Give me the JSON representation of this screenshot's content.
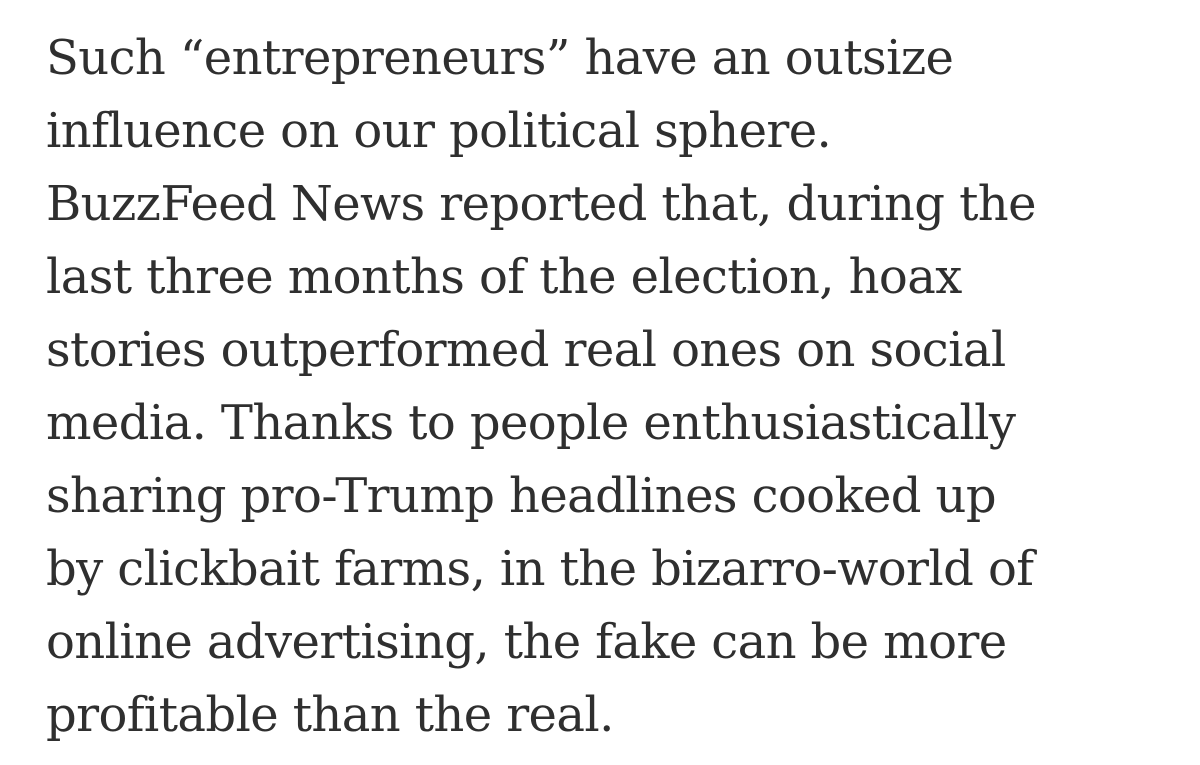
{
  "article": {
    "lines": [
      "Such “entrepreneurs” have an outsize",
      "influence on our political sphere.",
      "BuzzFeed News reported that, during the",
      "last three months of the election, hoax",
      "stories outperformed real ones on social",
      "media. Thanks to people enthusiastically",
      "sharing pro-Trump headlines cooked up",
      "by clickbait farms, in the bizarro-world of",
      "online advertising, the fake can be more",
      "profitable than the real."
    ]
  },
  "colors": {
    "background": "#ffffff",
    "text": "#2f2f2f"
  }
}
